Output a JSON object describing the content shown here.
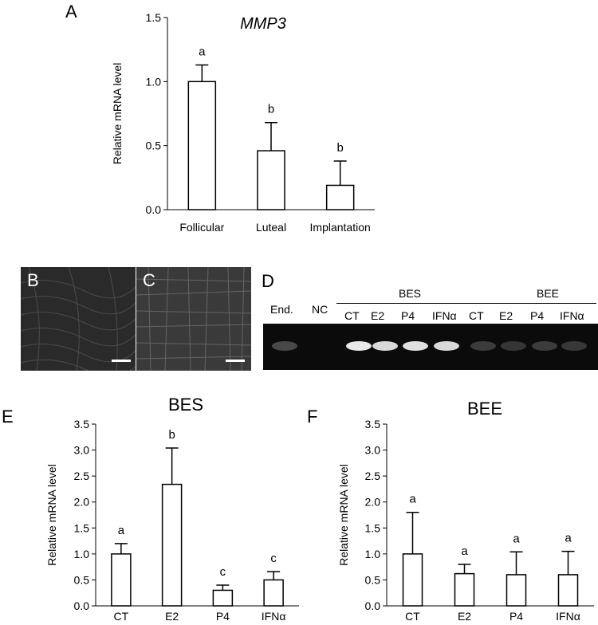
{
  "panels": {
    "A": "A",
    "B": "B",
    "C": "C",
    "D": "D",
    "E": "E",
    "F": "F"
  },
  "gel": {
    "lanes": [
      "End.",
      "NC",
      "CT",
      "E2",
      "P4",
      "IFNα",
      "CT",
      "E2",
      "P4",
      "IFNα"
    ],
    "group_bes": "BES",
    "group_bee": "BEE",
    "band_intensity": [
      0.3,
      0.0,
      0.95,
      0.9,
      0.92,
      0.9,
      0.22,
      0.18,
      0.22,
      0.2
    ]
  },
  "chart_data": [
    {
      "type": "bar",
      "title": "MMP3",
      "ylabel": "Relative mRNA level",
      "xlabel": "",
      "categories": [
        "Follicular",
        "Luteal",
        "Implantation"
      ],
      "values": [
        1.0,
        0.46,
        0.19
      ],
      "errors": [
        0.13,
        0.22,
        0.19
      ],
      "letters": [
        "a",
        "b",
        "b"
      ],
      "ylim": [
        0,
        1.5
      ],
      "yticks": [
        "0.0",
        "0.5",
        "1.0",
        "1.5"
      ]
    },
    {
      "type": "bar",
      "title": "BES",
      "ylabel": "Relative mRNA level",
      "xlabel": "",
      "categories": [
        "CT",
        "E2",
        "P4",
        "IFNα"
      ],
      "values": [
        1.0,
        2.34,
        0.3,
        0.5
      ],
      "errors": [
        0.2,
        0.7,
        0.1,
        0.16
      ],
      "letters": [
        "a",
        "b",
        "c",
        "c"
      ],
      "ylim": [
        0,
        3.5
      ],
      "yticks": [
        "0.0",
        "0.5",
        "1.0",
        "1.5",
        "2.0",
        "2.5",
        "3.0",
        "3.5"
      ]
    },
    {
      "type": "bar",
      "title": "BEE",
      "ylabel": "Relative mRNA level",
      "xlabel": "",
      "categories": [
        "CT",
        "E2",
        "P4",
        "IFNα"
      ],
      "values": [
        1.0,
        0.62,
        0.6,
        0.6
      ],
      "errors": [
        0.8,
        0.18,
        0.44,
        0.45
      ],
      "letters": [
        "a",
        "a",
        "a",
        "a"
      ],
      "ylim": [
        0,
        3.5
      ],
      "yticks": [
        "0.0",
        "0.5",
        "1.0",
        "1.5",
        "2.0",
        "2.5",
        "3.0",
        "3.5"
      ]
    }
  ]
}
